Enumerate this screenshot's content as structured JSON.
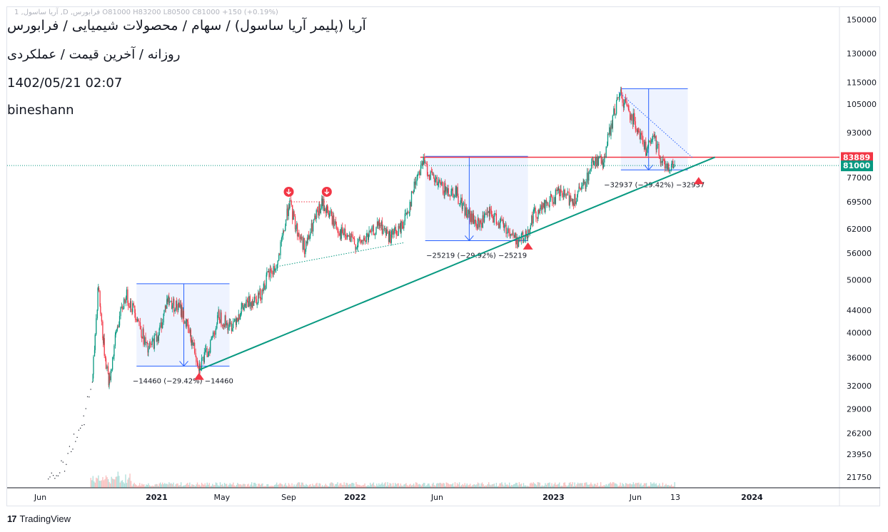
{
  "header": {
    "title": "آریا (پلیمر آریا ساسول) / سهام / محصولات شیمیایی / فرابورس",
    "subtitle": "روزانه / آخرین قیمت / عملکردی",
    "datetime": "1402/05/21 02:07",
    "author": "bineshann",
    "ohlc_line": "1 ,آریا ساسول ,D ,فرابورس O81000 H83200 L80500 C81000 +150 (+0.19%)"
  },
  "footer": {
    "brand": "TradingView",
    "logo": "17"
  },
  "price_tags": {
    "resistance": {
      "value": "83889",
      "color": "#f23645"
    },
    "last": {
      "value": "81000",
      "color": "#089981"
    }
  },
  "chart_data": {
    "type": "candlestick",
    "y_axis": {
      "scale": "log",
      "ticks": [
        150000,
        130000,
        115000,
        105000,
        93000,
        77000,
        69500,
        62000,
        56000,
        50000,
        44000,
        40000,
        36000,
        32000,
        29000,
        26200,
        23950,
        21750
      ],
      "range": [
        20800,
        158000
      ]
    },
    "x_axis": {
      "ticks": [
        {
          "label": "Jun",
          "bold": false,
          "date": "2020-06-01"
        },
        {
          "label": "2021",
          "bold": true,
          "date": "2021-01-01"
        },
        {
          "label": "May",
          "bold": false,
          "date": "2021-05-01"
        },
        {
          "label": "Sep",
          "bold": false,
          "date": "2021-09-01"
        },
        {
          "label": "2022",
          "bold": true,
          "date": "2022-01-01"
        },
        {
          "label": "Jun",
          "bold": false,
          "date": "2022-06-01"
        },
        {
          "label": "2023",
          "bold": true,
          "date": "2023-01-01"
        },
        {
          "label": "Jun",
          "bold": false,
          "date": "2023-06-01"
        },
        {
          "label": "13",
          "bold": false,
          "date": "2023-08-13"
        },
        {
          "label": "2024",
          "bold": true,
          "date": "2024-01-01"
        }
      ],
      "range": [
        "2020-04-01",
        "2024-06-10"
      ]
    },
    "price_path": [
      [
        "2020-06-15",
        21800
      ],
      [
        "2020-07-15",
        23000
      ],
      [
        "2020-08-01",
        25500
      ],
      [
        "2020-08-20",
        28000
      ],
      [
        "2020-09-05",
        33000
      ],
      [
        "2020-09-15",
        49000
      ],
      [
        "2020-09-25",
        38000
      ],
      [
        "2020-10-05",
        32500
      ],
      [
        "2020-10-20",
        41000
      ],
      [
        "2020-11-05",
        47000
      ],
      [
        "2020-11-25",
        43000
      ],
      [
        "2020-12-15",
        37000
      ],
      [
        "2021-01-05",
        40000
      ],
      [
        "2021-01-20",
        46000
      ],
      [
        "2021-02-15",
        44000
      ],
      [
        "2021-03-05",
        39000
      ],
      [
        "2021-03-20",
        34800
      ],
      [
        "2021-04-05",
        37000
      ],
      [
        "2021-04-25",
        43000
      ],
      [
        "2021-05-15",
        41000
      ],
      [
        "2021-06-05",
        44000
      ],
      [
        "2021-06-25",
        46000
      ],
      [
        "2021-07-10",
        47000
      ],
      [
        "2021-07-25",
        51000
      ],
      [
        "2021-08-10",
        53000
      ],
      [
        "2021-08-25",
        63000
      ],
      [
        "2021-09-01",
        69500
      ],
      [
        "2021-09-15",
        62000
      ],
      [
        "2021-10-01",
        57000
      ],
      [
        "2021-10-15",
        63000
      ],
      [
        "2021-11-01",
        69000
      ],
      [
        "2021-11-10",
        67000
      ],
      [
        "2021-12-05",
        61000
      ],
      [
        "2022-01-05",
        58000
      ],
      [
        "2022-01-25",
        60000
      ],
      [
        "2022-02-15",
        63000
      ],
      [
        "2022-03-05",
        60000
      ],
      [
        "2022-03-25",
        62000
      ],
      [
        "2022-04-10",
        68000
      ],
      [
        "2022-04-25",
        78000
      ],
      [
        "2022-05-05",
        82500
      ],
      [
        "2022-05-25",
        76000
      ],
      [
        "2022-06-15",
        73000
      ],
      [
        "2022-07-05",
        72500
      ],
      [
        "2022-07-25",
        66000
      ],
      [
        "2022-08-15",
        63000
      ],
      [
        "2022-09-05",
        66000
      ],
      [
        "2022-10-01",
        63000
      ],
      [
        "2022-10-25",
        59000
      ],
      [
        "2022-11-10",
        60000
      ],
      [
        "2022-11-25",
        66000
      ],
      [
        "2022-12-15",
        68000
      ],
      [
        "2023-01-10",
        72000
      ],
      [
        "2023-02-05",
        70000
      ],
      [
        "2023-02-25",
        74000
      ],
      [
        "2023-03-15",
        83000
      ],
      [
        "2023-04-01",
        82000
      ],
      [
        "2023-04-15",
        94000
      ],
      [
        "2023-05-01",
        110000
      ],
      [
        "2023-05-15",
        104000
      ],
      [
        "2023-06-05",
        95000
      ],
      [
        "2023-06-20",
        86000
      ],
      [
        "2023-07-05",
        91000
      ],
      [
        "2023-07-20",
        82000
      ],
      [
        "2023-08-05",
        80500
      ],
      [
        "2023-08-12",
        81000
      ]
    ],
    "horizontal_lines": [
      {
        "value": 83889,
        "color": "#f23645",
        "style": "solid",
        "from": "2022-05-01"
      },
      {
        "value": 81000,
        "color": "#089981",
        "style": "dotted",
        "from": "2020-04-01"
      }
    ],
    "trendlines": [
      {
        "from": [
          "2021-03-20",
          34200
        ],
        "to": [
          "2023-10-25",
          83889
        ],
        "color": "#089981",
        "style": "solid"
      },
      {
        "from": [
          "2021-08-15",
          53000
        ],
        "to": [
          "2022-04-01",
          58500
        ],
        "color": "#089981",
        "style": "dotted"
      },
      {
        "from": [
          "2023-05-01",
          110500
        ],
        "to": [
          "2023-09-15",
          83500
        ],
        "color": "#2962ff",
        "style": "dotted"
      },
      {
        "from": [
          "2021-09-01",
          69500
        ],
        "to": [
          "2021-11-10",
          69500
        ],
        "color": "#f23645",
        "style": "dotted"
      }
    ],
    "measure_boxes": [
      {
        "from": "2020-11-25",
        "to": "2021-05-15",
        "top": 49200,
        "bottom": 34750,
        "arrow_at": "2021-02-20",
        "label": "−14460 (−29.42%) −14460"
      },
      {
        "from": "2022-05-10",
        "to": "2022-11-15",
        "top": 84200,
        "bottom": 59000,
        "arrow_at": "2022-07-30",
        "label": "−25219 (−29.92%) −25219"
      },
      {
        "from": "2023-05-05",
        "to": "2023-09-05",
        "top": 112000,
        "bottom": 79500,
        "arrow_at": "2023-06-25",
        "label": "−32937 (−29.42%) −32937"
      }
    ],
    "markers": [
      {
        "kind": "down-circle",
        "date": "2021-09-01",
        "value": 72500
      },
      {
        "kind": "down-circle",
        "date": "2021-11-10",
        "value": 72500
      },
      {
        "kind": "up-triangle",
        "date": "2021-03-20",
        "value": 33300
      },
      {
        "kind": "up-triangle",
        "date": "2022-11-15",
        "value": 57700
      },
      {
        "kind": "up-triangle",
        "date": "2023-09-25",
        "value": 76000
      }
    ]
  }
}
